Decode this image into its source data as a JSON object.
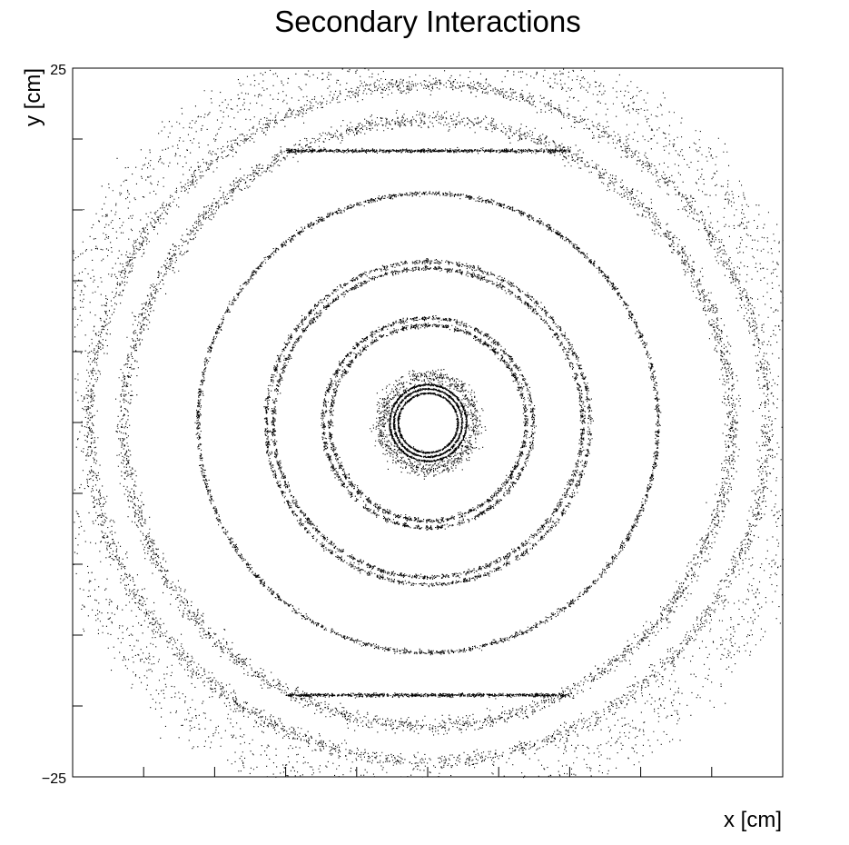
{
  "chart_data": {
    "type": "scatter",
    "title": "Secondary Interactions",
    "xlabel": "x [cm]",
    "ylabel": "y [cm]",
    "xlim": [
      -25,
      25
    ],
    "ylim": [
      -25,
      25
    ],
    "y_tick_labels": [
      "25",
      "−25"
    ],
    "x_tick_labels": [],
    "grid": false,
    "legend": "none",
    "marker_color": "#000000",
    "series": [
      {
        "description_rings": "radius in cm, point density",
        "rings": [
          {
            "r": 2.1,
            "density": 1.0,
            "style": "solid"
          },
          {
            "r": 2.4,
            "density": 1.0,
            "style": "solid"
          },
          {
            "r": 2.7,
            "density": 1.0,
            "style": "solid"
          },
          {
            "r": 3.3,
            "density": 0.8,
            "style": "band"
          },
          {
            "r": 6.9,
            "density": 0.7,
            "style": "dashed"
          },
          {
            "r": 7.4,
            "density": 0.6,
            "style": "dashed"
          },
          {
            "r": 10.9,
            "density": 0.6,
            "style": "dashed"
          },
          {
            "r": 11.4,
            "density": 0.5,
            "style": "dashed"
          },
          {
            "r": 16.2,
            "density": 0.6,
            "style": "dashed"
          },
          {
            "r": 21.4,
            "density": 0.45,
            "style": "band"
          },
          {
            "r": 23.9,
            "density": 0.4,
            "style": "band"
          }
        ],
        "horizontal_lines": [
          {
            "y": 19.2,
            "x_range": [
              -10,
              10
            ]
          },
          {
            "y": -19.2,
            "x_range": [
              -10,
              10
            ]
          }
        ],
        "outer_boundary_r": 26.3
      }
    ]
  }
}
